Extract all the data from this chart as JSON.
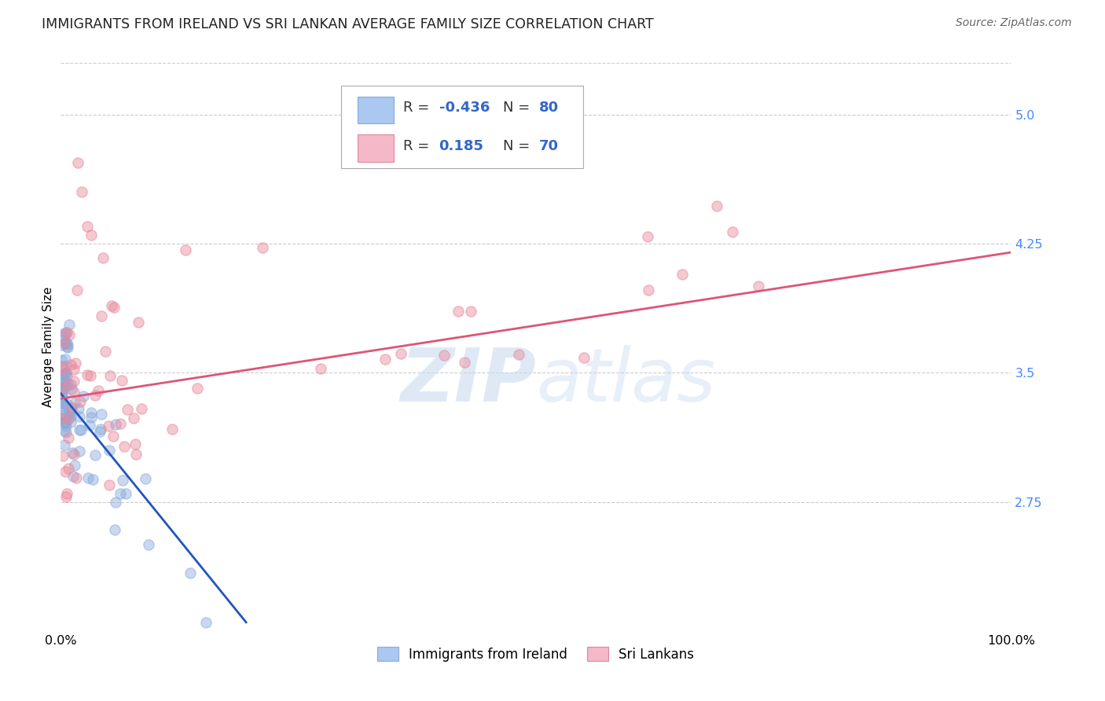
{
  "title": "IMMIGRANTS FROM IRELAND VS SRI LANKAN AVERAGE FAMILY SIZE CORRELATION CHART",
  "source": "Source: ZipAtlas.com",
  "ylabel": "Average Family Size",
  "xlim": [
    0,
    1.0
  ],
  "ylim": [
    2.0,
    5.3
  ],
  "yticks": [
    2.75,
    3.5,
    4.25,
    5.0
  ],
  "xticks": [
    0.0,
    1.0
  ],
  "xticklabels": [
    "0.0%",
    "100.0%"
  ],
  "background_color": "#ffffff",
  "legend_ireland_color": "#aac8f0",
  "legend_ireland_border": "#88aadd",
  "legend_srilanka_color": "#f5b8c8",
  "legend_srilanka_border": "#dd8899",
  "ireland_scatter_color": "#88aadd",
  "srilanka_scatter_color": "#e8889a",
  "ireland_line_color": "#2255bb",
  "srilanka_line_color": "#dd5577",
  "ireland_line_x0": 0.0,
  "ireland_line_y0": 3.38,
  "ireland_line_x1": 0.195,
  "ireland_line_y1": 2.05,
  "srilanka_line_x0": 0.0,
  "srilanka_line_y0": 3.35,
  "srilanka_line_x1": 1.0,
  "srilanka_line_y1": 4.2,
  "title_fontsize": 12.5,
  "axis_label_fontsize": 11,
  "tick_fontsize": 11.5,
  "legend_fontsize": 13
}
